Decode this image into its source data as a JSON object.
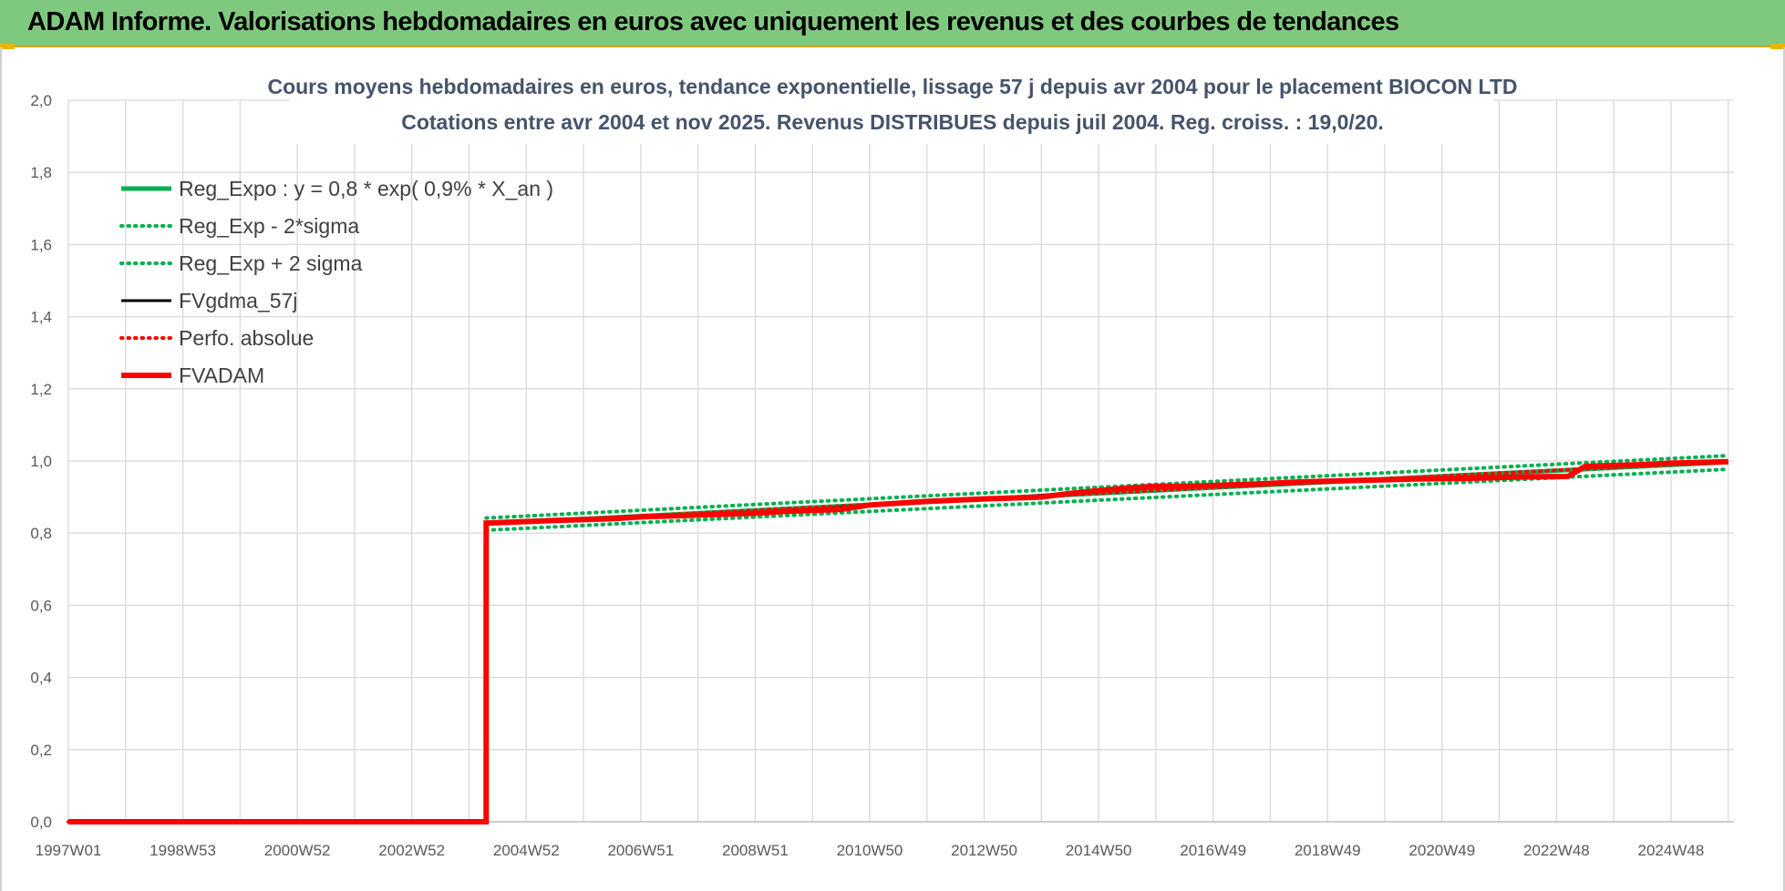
{
  "banner": {
    "title": "ADAM Informe. Valorisations hebdomadaires en euros avec uniquement les revenus et des courbes de tendances"
  },
  "chart_data": {
    "type": "line",
    "title": "Cours moyens hebdomadaires en euros, tendance exponentielle, lissage 57 j depuis avr 2004 pour le placement BIOCON LTD",
    "subtitle": "Cotations entre avr 2004 et nov 2025.  Revenus DISTRIBUES depuis juil 2004.  Reg. croiss. : 19,0/20.",
    "xlabel": "",
    "ylabel": "",
    "ylim": [
      0,
      2
    ],
    "y_ticks": [
      "0,0",
      "0,2",
      "0,4",
      "0,6",
      "0,8",
      "1,0",
      "1,2",
      "1,4",
      "1,6",
      "1,8",
      "2,0"
    ],
    "x_ticks": [
      "1997W01",
      "1998W53",
      "2000W52",
      "2002W52",
      "2004W52",
      "2006W51",
      "2008W51",
      "2010W50",
      "2012W50",
      "2014W50",
      "2016W49",
      "2018W49",
      "2020W49",
      "2022W48",
      "2024W48"
    ],
    "xlim": [
      1997.0,
      2026.1
    ],
    "grid": true,
    "legend_position": "top-left",
    "series": [
      {
        "name": "Reg_Expo : y = 0,8 * exp( 0,9% *  X_an )",
        "color": "#00b050",
        "style": "solid",
        "x": [
          2004.3,
          2026.0
        ],
        "y": [
          0.826,
          0.997
        ]
      },
      {
        "name": "Reg_Exp - 2*sigma",
        "color": "#00b050",
        "style": "dotted",
        "x": [
          2004.3,
          2026.0
        ],
        "y": [
          0.808,
          0.977
        ]
      },
      {
        "name": "Reg_Exp + 2 sigma",
        "color": "#00b050",
        "style": "dotted",
        "x": [
          2004.3,
          2026.0
        ],
        "y": [
          0.842,
          1.015
        ]
      },
      {
        "name": "FVgdma_57j",
        "color": "#000000",
        "style": "solid",
        "x": [
          1997.0,
          2004.3,
          2004.3,
          2005.0,
          2006.0,
          2007.0,
          2008.0,
          2009.0,
          2010.0,
          2011.0,
          2012.0,
          2013.0,
          2014.0,
          2015.0,
          2016.0,
          2017.0,
          2018.0,
          2019.0,
          2020.0,
          2021.0,
          2022.0,
          2023.2,
          2023.5,
          2024.0,
          2025.0,
          2026.0
        ],
        "y": [
          0.0,
          0.0,
          0.826,
          0.832,
          0.838,
          0.845,
          0.85,
          0.858,
          0.866,
          0.878,
          0.888,
          0.895,
          0.905,
          0.918,
          0.928,
          0.932,
          0.94,
          0.946,
          0.95,
          0.954,
          0.957,
          0.958,
          0.984,
          0.988,
          0.993,
          0.998
        ]
      },
      {
        "name": "Perfo. absolue",
        "color": "#ff0000",
        "style": "dotted",
        "x": [
          1997.0,
          2004.3,
          2004.3,
          2026.0
        ],
        "y": [
          0.0,
          0.0,
          0.826,
          0.998
        ]
      },
      {
        "name": "FVADAM",
        "color": "#ff0000",
        "style": "thick",
        "x": [
          1997.0,
          2004.3,
          2004.3,
          2005.0,
          2005.5,
          2006.5,
          2007.0,
          2008.0,
          2009.0,
          2009.5,
          2010.5,
          2011.0,
          2012.0,
          2013.0,
          2014.0,
          2014.5,
          2015.0,
          2015.5,
          2016.0,
          2016.5,
          2017.0,
          2018.0,
          2018.5,
          2019.5,
          2020.5,
          2021.5,
          2022.5,
          2023.2,
          2023.5,
          2024.5,
          2025.0,
          2026.0
        ],
        "y": [
          0.0,
          0.0,
          0.828,
          0.832,
          0.835,
          0.84,
          0.845,
          0.85,
          0.855,
          0.86,
          0.866,
          0.878,
          0.888,
          0.895,
          0.9,
          0.91,
          0.918,
          0.925,
          0.93,
          0.93,
          0.932,
          0.938,
          0.942,
          0.946,
          0.95,
          0.952,
          0.956,
          0.957,
          0.985,
          0.99,
          0.994,
          0.998
        ]
      }
    ]
  }
}
